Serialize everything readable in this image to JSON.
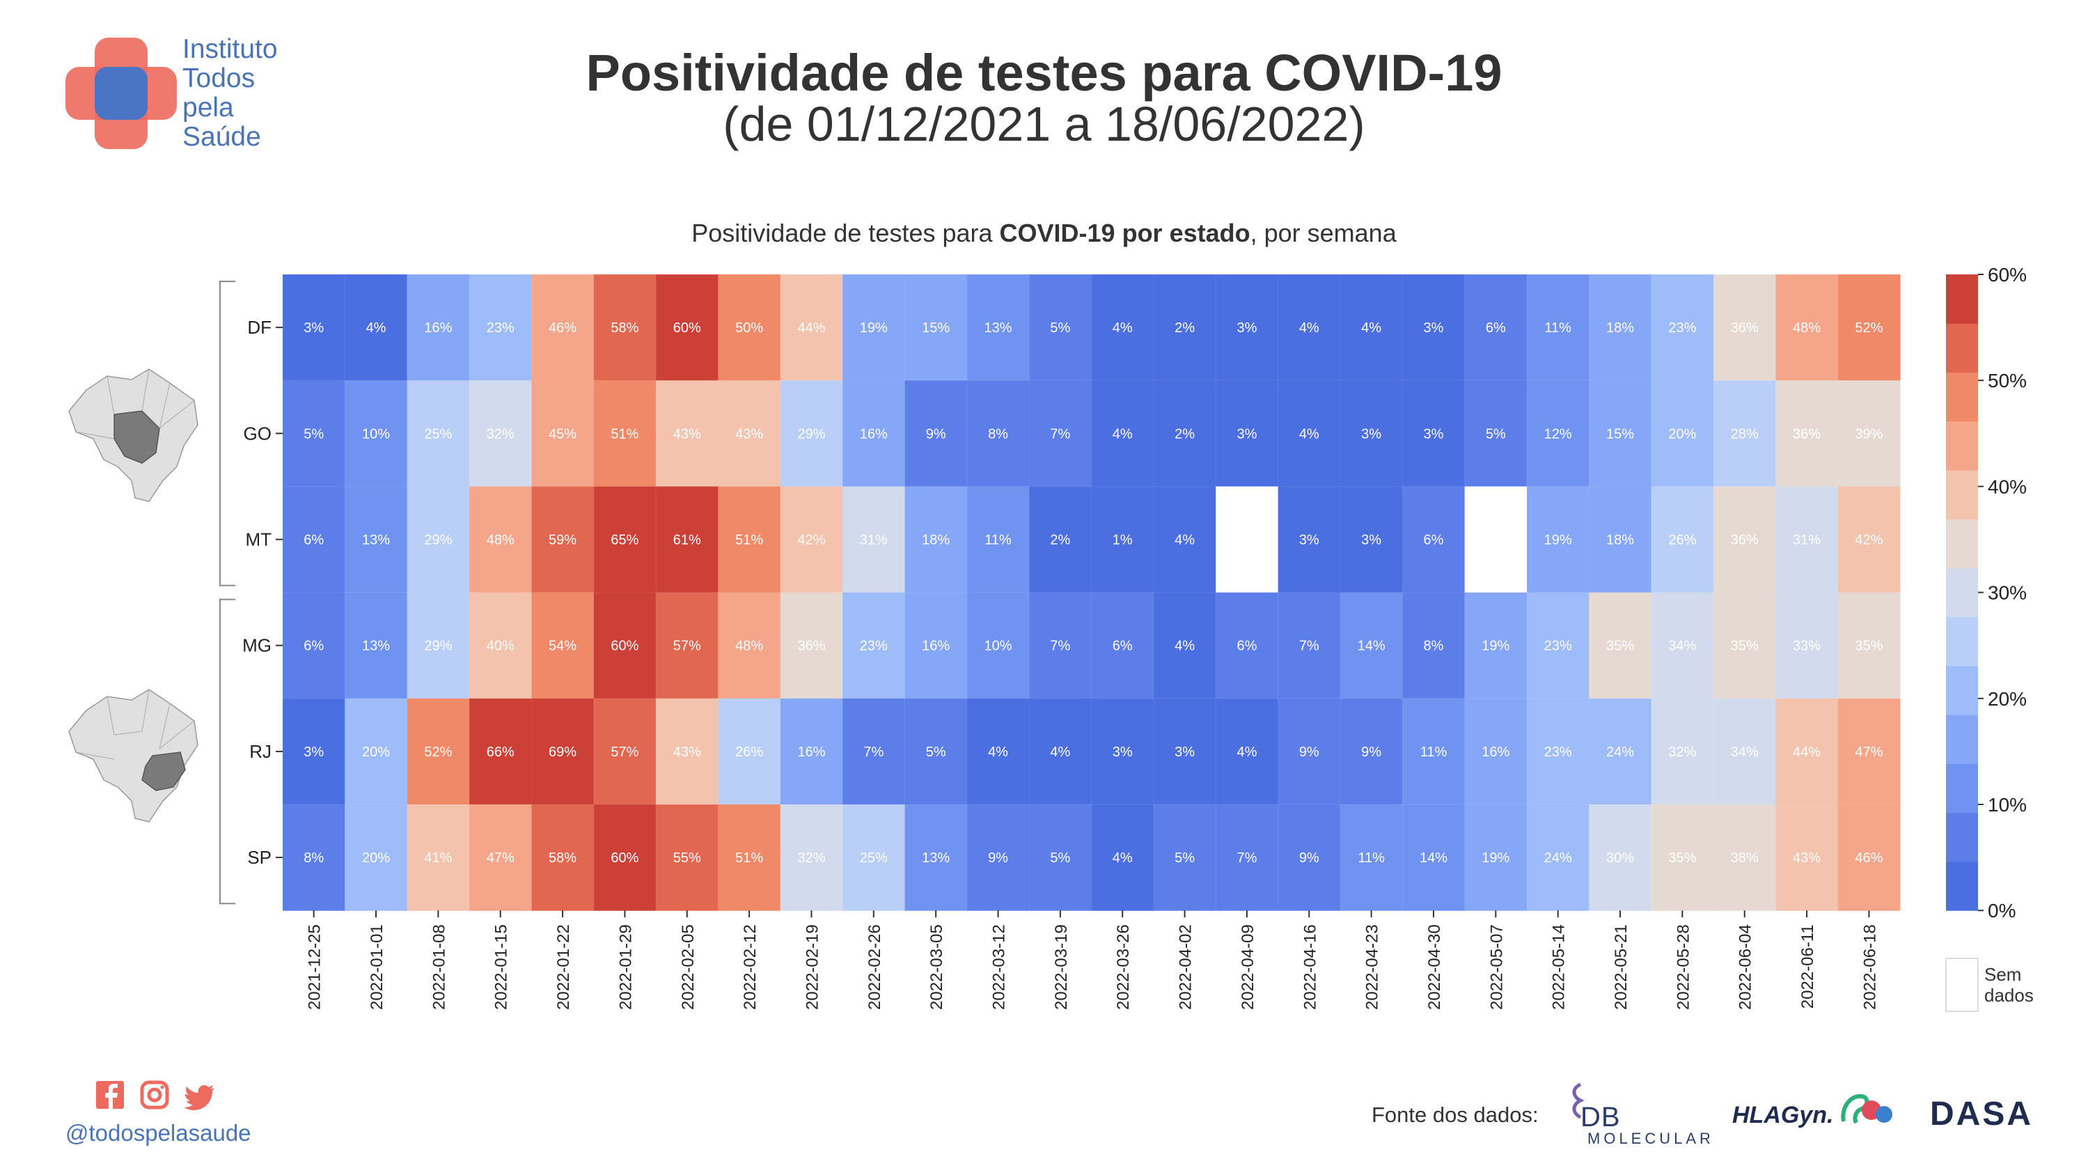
{
  "brand": {
    "org_name_lines": [
      "Instituto",
      "Todos",
      "pela",
      "Saúde"
    ],
    "social_icons": [
      "facebook-icon",
      "instagram-icon",
      "twitter-icon"
    ],
    "social_handle": "@todospelasaude"
  },
  "header": {
    "title": "Positividade de testes para COVID-19",
    "date_range": "(de 01/12/2021 a 18/06/2022)"
  },
  "subtitle": {
    "part1": "Positividade de testes para ",
    "part2_bold": "COVID-19 por estado",
    "part3": ", por semana"
  },
  "chart_data": {
    "type": "heatmap",
    "xlabel": "",
    "ylabel": "",
    "x_categories": [
      "2021-12-25",
      "2022-01-01",
      "2022-01-08",
      "2022-01-15",
      "2022-01-22",
      "2022-01-29",
      "2022-02-05",
      "2022-02-12",
      "2022-02-19",
      "2022-02-26",
      "2022-03-05",
      "2022-03-12",
      "2022-03-19",
      "2022-03-26",
      "2022-04-02",
      "2022-04-09",
      "2022-04-16",
      "2022-04-23",
      "2022-04-30",
      "2022-05-07",
      "2022-05-14",
      "2022-05-21",
      "2022-05-28",
      "2022-06-04",
      "2022-06-11",
      "2022-06-18"
    ],
    "y_categories": [
      "DF",
      "GO",
      "MT",
      "MG",
      "RJ",
      "SP"
    ],
    "row_groups": [
      {
        "rows": [
          "DF",
          "GO",
          "MT"
        ],
        "map_icon": "brazil-center-west-map-icon"
      },
      {
        "rows": [
          "MG",
          "RJ",
          "SP"
        ],
        "map_icon": "brazil-southeast-map-icon"
      }
    ],
    "values": [
      [
        3,
        4,
        16,
        23,
        46,
        58,
        60,
        50,
        44,
        19,
        15,
        13,
        5,
        4,
        2,
        3,
        4,
        4,
        3,
        6,
        11,
        18,
        23,
        36,
        48,
        52
      ],
      [
        5,
        10,
        25,
        32,
        45,
        51,
        43,
        43,
        29,
        16,
        9,
        8,
        7,
        4,
        2,
        3,
        4,
        3,
        3,
        5,
        12,
        15,
        20,
        28,
        36,
        39
      ],
      [
        6,
        13,
        29,
        48,
        59,
        65,
        61,
        51,
        42,
        31,
        18,
        11,
        2,
        1,
        4,
        null,
        3,
        3,
        6,
        null,
        19,
        18,
        26,
        36,
        31,
        42
      ],
      [
        6,
        13,
        29,
        40,
        54,
        60,
        57,
        48,
        36,
        23,
        16,
        10,
        7,
        6,
        4,
        6,
        7,
        14,
        8,
        19,
        23,
        35,
        34,
        35,
        33,
        35
      ],
      [
        3,
        20,
        52,
        66,
        69,
        57,
        43,
        26,
        16,
        7,
        5,
        4,
        4,
        3,
        3,
        4,
        9,
        9,
        11,
        16,
        23,
        24,
        32,
        34,
        44,
        47
      ],
      [
        8,
        20,
        41,
        47,
        58,
        60,
        55,
        51,
        32,
        25,
        13,
        9,
        5,
        4,
        5,
        7,
        9,
        11,
        14,
        19,
        24,
        30,
        35,
        38,
        43,
        46
      ]
    ],
    "value_suffix": "%",
    "colorbar": {
      "range": [
        0,
        60
      ],
      "tick_labels": [
        "0%",
        "10%",
        "20%",
        "30%",
        "40%",
        "50%",
        "60%"
      ],
      "bins": 12,
      "colors": [
        "#4b6ee0",
        "#5d7ee9",
        "#7093f1",
        "#86a7f7",
        "#9fbcfa",
        "#b9cff8",
        "#d2dbee",
        "#e6d9d1",
        "#f4c3ad",
        "#f5a68a",
        "#ef8967",
        "#e26750",
        "#cc4038"
      ]
    },
    "missing_legend": {
      "line1": "Sem",
      "line2": "dados",
      "color": "#ffffff"
    }
  },
  "footer": {
    "source_label": "Fonte dos dados:",
    "sponsors": [
      {
        "name": "DB Molecular",
        "text": "DB",
        "sub": "MOLECULAR"
      },
      {
        "name": "HLAGyn",
        "text": "HLAGyn."
      },
      {
        "name": "Dasa",
        "text": "DASA"
      }
    ]
  }
}
